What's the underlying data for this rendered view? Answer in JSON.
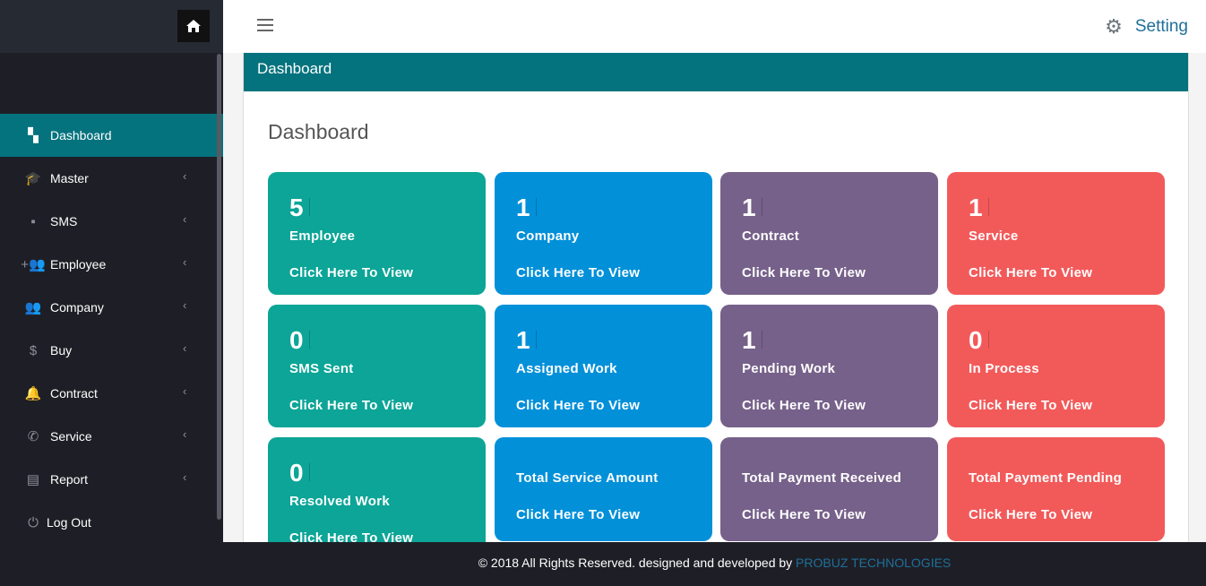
{
  "sidebar": {
    "items": [
      {
        "label": "Dashboard",
        "icon": "dashboard-icon",
        "glyph": "▚",
        "active": true,
        "chev": false
      },
      {
        "label": "Master",
        "icon": "graduation-cap-icon",
        "glyph": "🎓",
        "chev": true
      },
      {
        "label": "SMS",
        "icon": "message-icon",
        "glyph": "▪",
        "chev": true
      },
      {
        "label": "Employee",
        "icon": "group-add-icon",
        "glyph": "+👥",
        "chev": true
      },
      {
        "label": "Company",
        "icon": "people-icon",
        "glyph": "👥",
        "chev": true
      },
      {
        "label": "Buy",
        "icon": "dollar-icon",
        "glyph": "$",
        "chev": true
      },
      {
        "label": "Contract",
        "icon": "bell-plus-icon",
        "glyph": "🔔",
        "chev": true
      },
      {
        "label": "Service",
        "icon": "phone-forward-icon",
        "glyph": "✆",
        "chev": true
      },
      {
        "label": "Report",
        "icon": "library-books-icon",
        "glyph": "▤",
        "chev": true
      },
      {
        "label": "Log Out",
        "icon": "power-icon",
        "glyph": "⏻",
        "chev": false
      }
    ]
  },
  "topbar": {
    "setting": "Setting"
  },
  "panel": {
    "header": "Dashboard",
    "title": "Dashboard"
  },
  "colors": {
    "teal": "#0ca597",
    "blue": "#0290d9",
    "purple": "#76618a",
    "red": "#f25a5a"
  },
  "cards": [
    {
      "number": "5",
      "label": "Employee",
      "link": "Click Here To View",
      "color": "teal"
    },
    {
      "number": "1",
      "label": "Company",
      "link": "Click Here To View",
      "color": "blue"
    },
    {
      "number": "1",
      "label": "Contract",
      "link": "Click Here To View",
      "color": "purple"
    },
    {
      "number": "1",
      "label": "Service",
      "link": "Click Here To View",
      "color": "red"
    },
    {
      "number": "0",
      "label": "SMS Sent",
      "link": "Click Here To View",
      "color": "teal"
    },
    {
      "number": "1",
      "label": "Assigned Work",
      "link": "Click Here To View",
      "color": "blue"
    },
    {
      "number": "1",
      "label": "Pending Work",
      "link": "Click Here To View",
      "color": "purple"
    },
    {
      "number": "0",
      "label": "In Process",
      "link": "Click Here To View",
      "color": "red"
    },
    {
      "number": "0",
      "label": "Resolved Work",
      "link": "Click Here To View",
      "color": "teal"
    },
    {
      "number": null,
      "label": "Total Service Amount",
      "link": "Click Here To View",
      "color": "blue"
    },
    {
      "number": null,
      "label": "Total Payment Received",
      "link": "Click Here To View",
      "color": "purple"
    },
    {
      "number": null,
      "label": "Total Payment Pending",
      "link": "Click Here To View",
      "color": "red"
    }
  ],
  "footer": {
    "text": "© 2018 All Rights Reserved. designed and developed by ",
    "company": "PROBUZ TECHNOLOGIES"
  }
}
